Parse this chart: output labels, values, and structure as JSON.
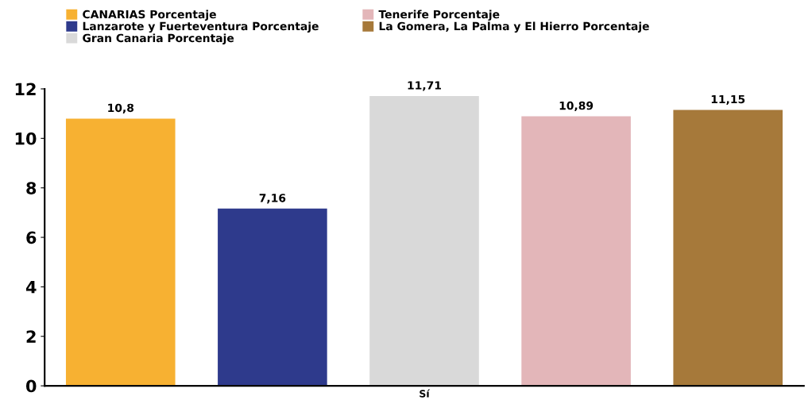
{
  "chart_data": {
    "type": "bar",
    "categories": [
      "Sí"
    ],
    "series": [
      {
        "name": "CANARIAS Porcentaje",
        "color": "#f7b132",
        "values": [
          10.8
        ],
        "value_labels": [
          "10,8"
        ]
      },
      {
        "name": "Lanzarote y Fuerteventura Porcentaje",
        "color": "#2e3a8c",
        "values": [
          7.16
        ],
        "value_labels": [
          "7,16"
        ]
      },
      {
        "name": "Gran Canaria Porcentaje",
        "color": "#d9d9d9",
        "values": [
          11.71
        ],
        "value_labels": [
          "11,71"
        ]
      },
      {
        "name": "Tenerife Porcentaje",
        "color": "#e3b6b9",
        "values": [
          10.89
        ],
        "value_labels": [
          "10,89"
        ]
      },
      {
        "name": "La Gomera, La Palma y El Hierro Porcentaje",
        "color": "#a6793a",
        "values": [
          11.15
        ],
        "value_labels": [
          "11,15"
        ]
      }
    ],
    "ylim": [
      0,
      12
    ],
    "yticks": [
      0,
      2,
      4,
      6,
      8,
      10,
      12
    ],
    "grid": false,
    "legend": "top"
  }
}
